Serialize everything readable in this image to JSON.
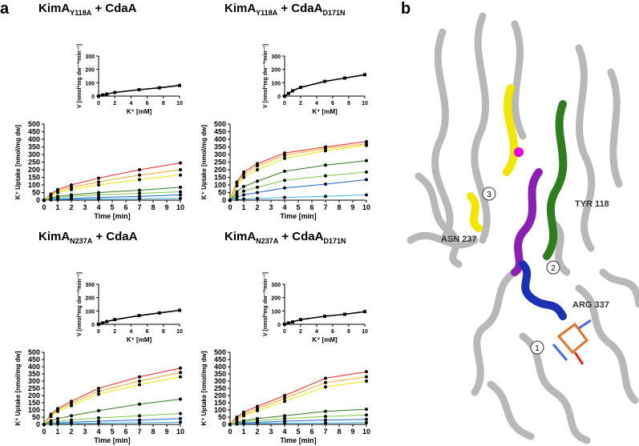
{
  "panels": {
    "a": "a",
    "b": "b"
  },
  "titles": [
    {
      "main": "KimA",
      "sub1": "Y118A",
      "mid": " + CdaA",
      "sub2": ""
    },
    {
      "main": "KimA",
      "sub1": "Y118A",
      "mid": " + CdaA",
      "sub2": "D171N"
    },
    {
      "main": "KimA",
      "sub1": "N237A",
      "mid": " + CdaA",
      "sub2": ""
    },
    {
      "main": "KimA",
      "sub1": "N237A",
      "mid": " + CdaA",
      "sub2": "D171N"
    }
  ],
  "axis_labels": {
    "kin_y": "V [nmol*mg dw⁻¹*min⁻¹]",
    "kin_x": "K⁺ [mM]",
    "up_y": "K⁺ Uptake [nmol/mg dw]",
    "up_x": "Time [min]"
  },
  "structure_labels": {
    "tyr": "TYR 118",
    "asn": "ASN 237",
    "arg": "ARG 337",
    "n1": "1",
    "n2": "2",
    "n3": "3"
  },
  "colors": {
    "red": "#e8251f",
    "orange": "#f5a623",
    "yellow": "#f2e600",
    "green": "#2e7d1e",
    "lime": "#7ac943",
    "blue": "#1f5fd6",
    "ltblue": "#37b7e6"
  },
  "chart_data": [
    {
      "type": "line",
      "panel": "Y118A+CdaA kinetics",
      "x": [
        0,
        0.5,
        1,
        2,
        5,
        7.5,
        10
      ],
      "y": [
        0,
        8,
        15,
        27,
        48,
        62,
        80
      ],
      "xlim": [
        0,
        10
      ],
      "ylim": [
        0,
        300
      ],
      "xticks": [
        0,
        2,
        4,
        6,
        8,
        10
      ],
      "yticks": [
        0,
        100,
        200,
        300
      ]
    },
    {
      "type": "line",
      "panel": "Y118A+CdaA uptake",
      "x": [
        0,
        0.5,
        1,
        2,
        4,
        7,
        10
      ],
      "xlim": [
        0,
        10
      ],
      "ylim": [
        0,
        500
      ],
      "xticks": [
        0,
        1,
        2,
        3,
        4,
        5,
        6,
        7,
        8,
        9,
        10
      ],
      "yticks": [
        0,
        50,
        100,
        150,
        200,
        250,
        300,
        350,
        400,
        450,
        500
      ],
      "series": [
        {
          "color": "red",
          "values": [
            0,
            40,
            70,
            100,
            145,
            200,
            245
          ]
        },
        {
          "color": "orange",
          "values": [
            0,
            35,
            60,
            85,
            120,
            165,
            200
          ]
        },
        {
          "color": "yellow",
          "values": [
            0,
            30,
            50,
            70,
            100,
            135,
            165
          ]
        },
        {
          "color": "green",
          "values": [
            0,
            15,
            25,
            35,
            50,
            65,
            85
          ]
        },
        {
          "color": "lime",
          "values": [
            0,
            10,
            18,
            25,
            35,
            45,
            55
          ]
        },
        {
          "color": "blue",
          "values": [
            0,
            5,
            8,
            12,
            18,
            25,
            35
          ]
        },
        {
          "color": "ltblue",
          "values": [
            0,
            2,
            4,
            6,
            8,
            10,
            12
          ]
        }
      ]
    },
    {
      "type": "line",
      "panel": "Y118A+CdaA-D171N kinetics",
      "x": [
        0,
        0.5,
        1,
        2,
        5,
        7.5,
        10
      ],
      "y": [
        0,
        20,
        40,
        65,
        110,
        135,
        160
      ],
      "xlim": [
        0,
        10
      ],
      "ylim": [
        0,
        300
      ],
      "xticks": [
        0,
        2,
        4,
        6,
        8,
        10
      ],
      "yticks": [
        0,
        100,
        200,
        300
      ]
    },
    {
      "type": "line",
      "panel": "Y118A+CdaA-D171N uptake",
      "x": [
        0,
        0.5,
        1,
        2,
        4,
        7,
        10
      ],
      "xlim": [
        0,
        10
      ],
      "ylim": [
        0,
        500
      ],
      "xticks": [
        0,
        1,
        2,
        3,
        4,
        5,
        6,
        7,
        8,
        9,
        10
      ],
      "yticks": [
        0,
        50,
        100,
        150,
        200,
        250,
        300,
        350,
        400,
        450,
        500
      ],
      "series": [
        {
          "color": "red",
          "values": [
            0,
            120,
            185,
            240,
            310,
            350,
            385
          ]
        },
        {
          "color": "orange",
          "values": [
            0,
            110,
            170,
            225,
            295,
            340,
            370
          ]
        },
        {
          "color": "yellow",
          "values": [
            0,
            95,
            150,
            200,
            275,
            325,
            360
          ]
        },
        {
          "color": "green",
          "values": [
            0,
            55,
            90,
            125,
            190,
            230,
            260
          ]
        },
        {
          "color": "lime",
          "values": [
            0,
            35,
            60,
            85,
            130,
            160,
            185
          ]
        },
        {
          "color": "blue",
          "values": [
            0,
            20,
            35,
            50,
            80,
            105,
            135
          ]
        },
        {
          "color": "ltblue",
          "values": [
            0,
            5,
            8,
            12,
            18,
            25,
            35
          ]
        }
      ]
    },
    {
      "type": "line",
      "panel": "N237A+CdaA kinetics",
      "x": [
        0,
        0.5,
        1,
        2,
        5,
        7.5,
        10
      ],
      "y": [
        0,
        10,
        20,
        35,
        65,
        85,
        105
      ],
      "xlim": [
        0,
        10
      ],
      "ylim": [
        0,
        300
      ],
      "xticks": [
        0,
        2,
        4,
        6,
        8,
        10
      ],
      "yticks": [
        0,
        100,
        200,
        300
      ]
    },
    {
      "type": "line",
      "panel": "N237A+CdaA uptake",
      "x": [
        0,
        0.5,
        1,
        2,
        4,
        7,
        10
      ],
      "xlim": [
        0,
        10
      ],
      "ylim": [
        0,
        500
      ],
      "xticks": [
        0,
        1,
        2,
        3,
        4,
        5,
        6,
        7,
        8,
        9,
        10
      ],
      "yticks": [
        0,
        50,
        100,
        150,
        200,
        250,
        300,
        350,
        400,
        450,
        500
      ],
      "series": [
        {
          "color": "red",
          "values": [
            0,
            70,
            110,
            160,
            250,
            330,
            390
          ]
        },
        {
          "color": "orange",
          "values": [
            0,
            60,
            100,
            145,
            230,
            300,
            360
          ]
        },
        {
          "color": "yellow",
          "values": [
            0,
            55,
            90,
            130,
            210,
            275,
            330
          ]
        },
        {
          "color": "green",
          "values": [
            0,
            25,
            40,
            60,
            95,
            140,
            175
          ]
        },
        {
          "color": "lime",
          "values": [
            0,
            12,
            20,
            30,
            45,
            60,
            75
          ]
        },
        {
          "color": "blue",
          "values": [
            0,
            5,
            10,
            15,
            22,
            30,
            40
          ]
        },
        {
          "color": "ltblue",
          "values": [
            0,
            2,
            4,
            6,
            9,
            12,
            15
          ]
        }
      ]
    },
    {
      "type": "line",
      "panel": "N237A+CdaA-D171N kinetics",
      "x": [
        0,
        0.5,
        1,
        2,
        5,
        7.5,
        10
      ],
      "y": [
        0,
        10,
        18,
        35,
        60,
        75,
        95
      ],
      "xlim": [
        0,
        10
      ],
      "ylim": [
        0,
        300
      ],
      "xticks": [
        0,
        2,
        4,
        6,
        8,
        10
      ],
      "yticks": [
        0,
        100,
        200,
        300
      ]
    },
    {
      "type": "line",
      "panel": "N237A+CdaA-D171N uptake",
      "x": [
        0,
        0.5,
        1,
        2,
        4,
        7,
        10
      ],
      "xlim": [
        0,
        10
      ],
      "ylim": [
        0,
        500
      ],
      "xticks": [
        0,
        1,
        2,
        3,
        4,
        5,
        6,
        7,
        8,
        9,
        10
      ],
      "yticks": [
        0,
        50,
        100,
        150,
        200,
        250,
        300,
        350,
        400,
        450,
        500
      ],
      "series": [
        {
          "color": "red",
          "values": [
            0,
            50,
            85,
            125,
            200,
            320,
            365
          ]
        },
        {
          "color": "orange",
          "values": [
            0,
            40,
            70,
            110,
            180,
            290,
            330
          ]
        },
        {
          "color": "yellow",
          "values": [
            0,
            35,
            60,
            95,
            160,
            260,
            300
          ]
        },
        {
          "color": "green",
          "values": [
            0,
            15,
            25,
            40,
            60,
            90,
            105
          ]
        },
        {
          "color": "lime",
          "values": [
            0,
            10,
            18,
            25,
            40,
            55,
            65
          ]
        },
        {
          "color": "blue",
          "values": [
            0,
            5,
            10,
            14,
            22,
            30,
            35
          ]
        },
        {
          "color": "ltblue",
          "values": [
            0,
            2,
            4,
            6,
            8,
            10,
            12
          ]
        }
      ]
    }
  ]
}
